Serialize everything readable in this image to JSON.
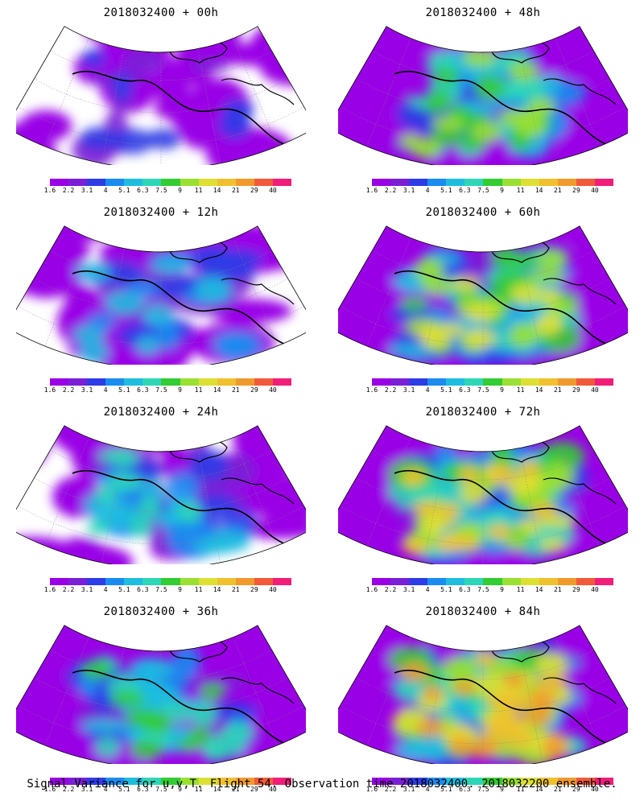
{
  "figure": {
    "caption": "Signal Variance for u,v,T. Flight 54. Observation time 2018032400. 2018032200 ensemble."
  },
  "panels": [
    {
      "title": "2018032400 + 00h",
      "lead": "00h",
      "level": 0.15
    },
    {
      "title": "2018032400 + 48h",
      "lead": "48h",
      "level": 0.62
    },
    {
      "title": "2018032400 + 12h",
      "lead": "12h",
      "level": 0.3
    },
    {
      "title": "2018032400 + 60h",
      "lead": "60h",
      "level": 0.7
    },
    {
      "title": "2018032400 + 24h",
      "lead": "24h",
      "level": 0.4
    },
    {
      "title": "2018032400 + 72h",
      "lead": "72h",
      "level": 0.78
    },
    {
      "title": "2018032400 + 36h",
      "lead": "36h",
      "level": 0.5
    },
    {
      "title": "2018032400 + 84h",
      "lead": "84h",
      "level": 0.86
    }
  ],
  "colorbar": {
    "labels": [
      "1.6",
      "2.2",
      "3.1",
      "4",
      "5.1",
      "6.3",
      "7.5",
      "9",
      "11",
      "14",
      "21",
      "29",
      "40"
    ],
    "colors": [
      "#9900e6",
      "#7a1fd6",
      "#2e3ce6",
      "#1a8cf0",
      "#1fbde0",
      "#2ed6b8",
      "#33cc33",
      "#99e033",
      "#dde033",
      "#f0c02e",
      "#f09a2e",
      "#f05a3a",
      "#f01e78"
    ]
  }
}
